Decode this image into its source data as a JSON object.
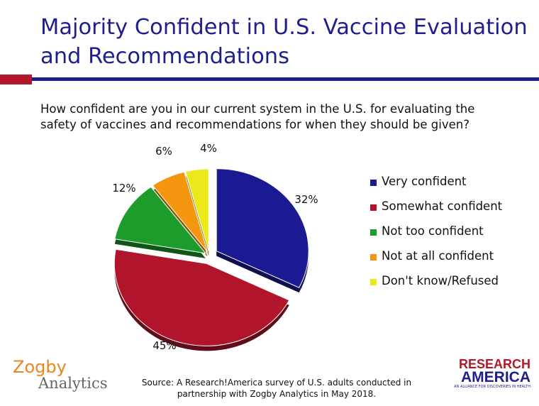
{
  "title": "Majority Confident in U.S. Vaccine Evaluation and Recommendations",
  "question": "How confident are you in our current system in the U.S. for evaluating the safety of vaccines and recommendations for when they should be given?",
  "chart_data": {
    "type": "pie",
    "categories": [
      "Very confident",
      "Somewhat confident",
      "Not too confident",
      "Not at all confident",
      "Don't know/Refused"
    ],
    "values": [
      32,
      45,
      12,
      6,
      4
    ],
    "value_labels": [
      "32%",
      "45%",
      "12%",
      "6%",
      "4%"
    ],
    "colors": [
      "#1b1a92",
      "#b1152b",
      "#1d9b2b",
      "#f4960e",
      "#ece81a"
    ],
    "legend_placement": "right"
  },
  "source": "Source: A Research!America survey of U.S. adults conducted in partnership with Zogby Analytics in May 2018.",
  "logos": {
    "zogby_line1": "Zogby",
    "zogby_line2": "Analytics",
    "research_line1": "RESEARCH",
    "research_line2": "AMERICA",
    "research_tagline": "AN ALLIANCE FOR DISCOVERIES IN HEALTH"
  }
}
